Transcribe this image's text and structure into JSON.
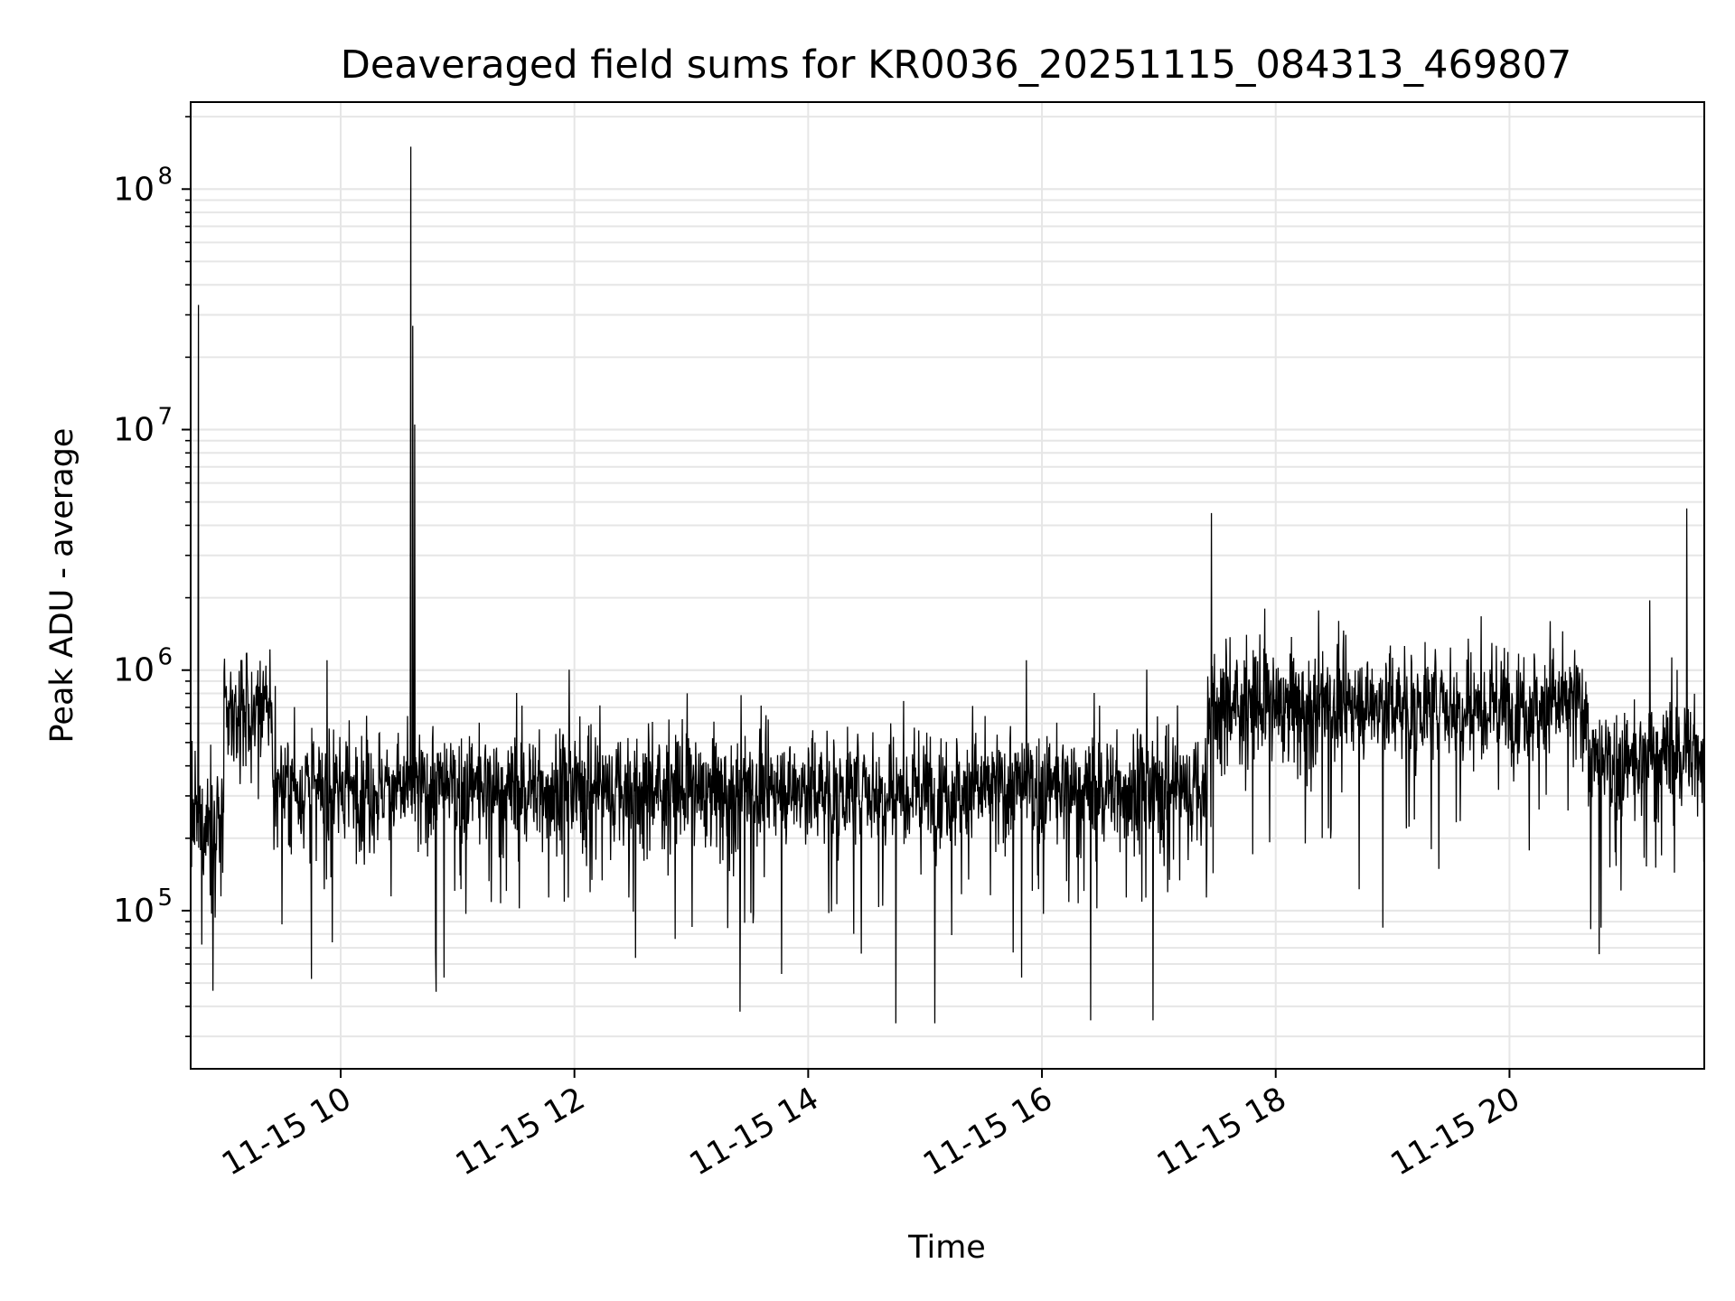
{
  "chart_data": {
    "type": "line",
    "title": "Deaveraged field sums for KR0036_20251115_084313_469807",
    "xlabel": "Time",
    "ylabel": "Peak ADU - average",
    "x_scale": "time",
    "y_scale": "log",
    "xlim": [
      "2025-11-15T08:43",
      "2025-11-15T21:40"
    ],
    "ylim": [
      22000,
      230000000
    ],
    "x_ticks": [
      {
        "value": "2025-11-15T10:00",
        "label": "11-15 10"
      },
      {
        "value": "2025-11-15T12:00",
        "label": "11-15 12"
      },
      {
        "value": "2025-11-15T14:00",
        "label": "11-15 14"
      },
      {
        "value": "2025-11-15T16:00",
        "label": "11-15 16"
      },
      {
        "value": "2025-11-15T18:00",
        "label": "11-15 18"
      },
      {
        "value": "2025-11-15T20:00",
        "label": "11-15 20"
      }
    ],
    "y_ticks": [
      {
        "value": 100000,
        "base": "10",
        "exponent": "5"
      },
      {
        "value": 1000000,
        "base": "10",
        "exponent": "6"
      },
      {
        "value": 10000000,
        "base": "10",
        "exponent": "7"
      },
      {
        "value": 100000000,
        "base": "10",
        "exponent": "8"
      }
    ],
    "grid": true,
    "grid_color": "#e6e6e6",
    "line_color": "#000000",
    "series": [
      {
        "baseline_segments": [
          {
            "start": "2025-11-15T08:43",
            "end": "2025-11-15T09:00",
            "median": 230000
          },
          {
            "start": "2025-11-15T09:00",
            "end": "2025-11-15T09:25",
            "median": 650000
          },
          {
            "start": "2025-11-15T09:25",
            "end": "2025-11-15T17:25",
            "median": 320000
          },
          {
            "start": "2025-11-15T17:25",
            "end": "2025-11-15T20:40",
            "median": 720000
          },
          {
            "start": "2025-11-15T20:40",
            "end": "2025-11-15T21:10",
            "median": 400000
          },
          {
            "start": "2025-11-15T21:10",
            "end": "2025-11-15T21:40",
            "median": 450000
          }
        ],
        "spikes": [
          {
            "time": "2025-11-15T08:47",
            "value": 33000000
          },
          {
            "time": "2025-11-15T10:36",
            "value": 150000000
          },
          {
            "time": "2025-11-15T10:37",
            "value": 27000000
          },
          {
            "time": "2025-11-15T10:38",
            "value": 10500000
          },
          {
            "time": "2025-11-15T17:27",
            "value": 4500000
          },
          {
            "time": "2025-11-15T21:31",
            "value": 4700000
          },
          {
            "time": "2025-11-15T21:12",
            "value": 1950000
          },
          {
            "time": "2025-11-15T09:53",
            "value": 1100000
          },
          {
            "time": "2025-11-15T15:52",
            "value": 1100000
          }
        ],
        "dips": [
          {
            "time": "2025-11-15T10:49",
            "value": 46000
          },
          {
            "time": "2025-11-15T14:45",
            "value": 34000
          },
          {
            "time": "2025-11-15T15:05",
            "value": 34000
          },
          {
            "time": "2025-11-15T16:25",
            "value": 35000
          },
          {
            "time": "2025-11-15T16:57",
            "value": 35000
          },
          {
            "time": "2025-11-15T13:25",
            "value": 38000
          },
          {
            "time": "2025-11-15T09:45",
            "value": 52000
          },
          {
            "time": "2025-11-15T18:55",
            "value": 85000
          },
          {
            "time": "2025-11-15T20:47",
            "value": 85000
          }
        ]
      }
    ]
  }
}
